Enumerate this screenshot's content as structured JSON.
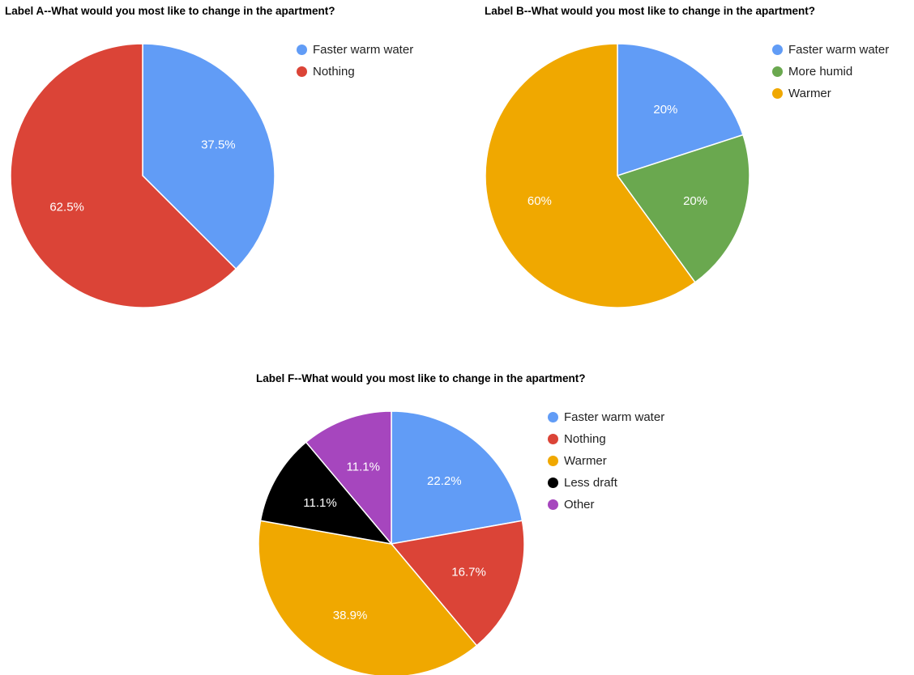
{
  "chart_data": [
    {
      "type": "pie",
      "title": "Label A--What would you most like to change in the apartment?",
      "slices": [
        {
          "label": "Faster warm water",
          "value": 37.5,
          "display": "37.5%",
          "color": "#619cf6"
        },
        {
          "label": "Nothing",
          "value": 62.5,
          "display": "62.5%",
          "color": "#db4437"
        }
      ],
      "legend_position": "right"
    },
    {
      "type": "pie",
      "title": "Label B--What would you most like to change in the apartment?",
      "slices": [
        {
          "label": "Faster warm water",
          "value": 20,
          "display": "20%",
          "color": "#619cf6"
        },
        {
          "label": "More humid",
          "value": 20,
          "display": "20%",
          "color": "#6aa84f"
        },
        {
          "label": "Warmer",
          "value": 60,
          "display": "60%",
          "color": "#f0a800"
        }
      ],
      "legend_position": "right"
    },
    {
      "type": "pie",
      "title": "Label F--What would you most like to change in the apartment?",
      "slices": [
        {
          "label": "Faster warm water",
          "value": 22.2,
          "display": "22.2%",
          "color": "#619cf6"
        },
        {
          "label": "Nothing",
          "value": 16.7,
          "display": "16.7%",
          "color": "#db4437"
        },
        {
          "label": "Warmer",
          "value": 38.9,
          "display": "38.9%",
          "color": "#f0a800"
        },
        {
          "label": "Less draft",
          "value": 11.1,
          "display": "11.1%",
          "color": "#000000"
        },
        {
          "label": "Other",
          "value": 11.1,
          "display": "11.1%",
          "color": "#a646be"
        }
      ],
      "legend_position": "right"
    }
  ]
}
